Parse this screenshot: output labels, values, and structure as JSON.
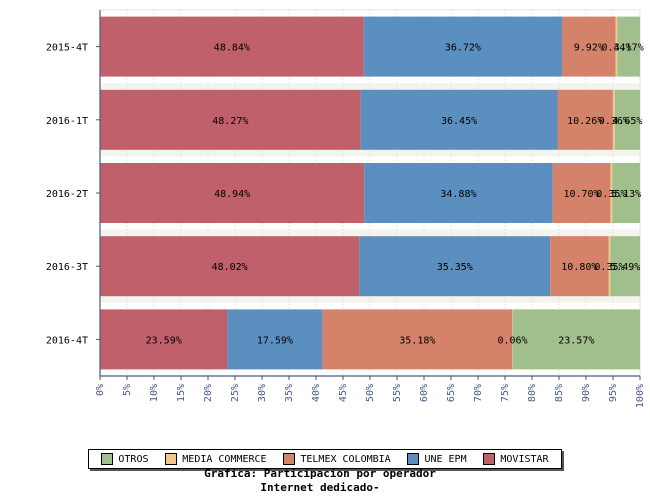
{
  "chart_data": {
    "type": "bar",
    "orientation": "horizontal",
    "stacked": true,
    "categories": [
      "2015-4T",
      "2016-1T",
      "2016-2T",
      "2016-3T",
      "2016-4T"
    ],
    "series": [
      {
        "name": "MOVISTAR",
        "color": "#c0606a",
        "values": [
          48.84,
          48.27,
          48.94,
          48.02,
          23.59
        ],
        "labels": [
          "48.84%",
          "48.27%",
          "48.94%",
          "48.02%",
          "23.59%"
        ]
      },
      {
        "name": "UNE EPM",
        "color": "#5b8fc0",
        "values": [
          36.72,
          36.45,
          34.88,
          35.35,
          17.59
        ],
        "labels": [
          "36.72%",
          "36.45%",
          "34.88%",
          "35.35%",
          "17.59%"
        ]
      },
      {
        "name": "TELMEX COLOMBIA",
        "color": "#d4826a",
        "values": [
          9.92,
          10.26,
          10.7,
          10.8,
          35.18
        ],
        "labels": [
          "9.92%",
          "10.26%",
          "10.70%",
          "10.80%",
          "35.18%"
        ]
      },
      {
        "name": "MEDIA COMMERCE",
        "color": "#f0c88c",
        "values": [
          0.34,
          0.36,
          0.35,
          0.35,
          0.06
        ],
        "labels": [
          "0.34%",
          "0.36%",
          "0.35%",
          "0.35%",
          "0.06%"
        ]
      },
      {
        "name": "OTROS",
        "color": "#a0bf8c",
        "values": [
          4.17,
          4.65,
          5.13,
          5.49,
          23.57
        ],
        "labels": [
          "4.17%",
          "4.65%",
          "5.13%",
          "5.49%",
          "23.57%"
        ]
      }
    ],
    "xlim": [
      0,
      100
    ],
    "xticks": [
      "0%",
      "5%",
      "10%",
      "15%",
      "20%",
      "25%",
      "30%",
      "35%",
      "40%",
      "45%",
      "50%",
      "55%",
      "60%",
      "65%",
      "70%",
      "75%",
      "80%",
      "85%",
      "90%",
      "95%",
      "100%"
    ],
    "legend_order": [
      "OTROS",
      "MEDIA COMMERCE",
      "TELMEX COLOMBIA",
      "UNE EPM",
      "MOVISTAR"
    ],
    "legend_position": "bottom",
    "grid": true,
    "title_lines": [
      "Grafica: Participacion por operador",
      "Internet dedicado-"
    ]
  }
}
